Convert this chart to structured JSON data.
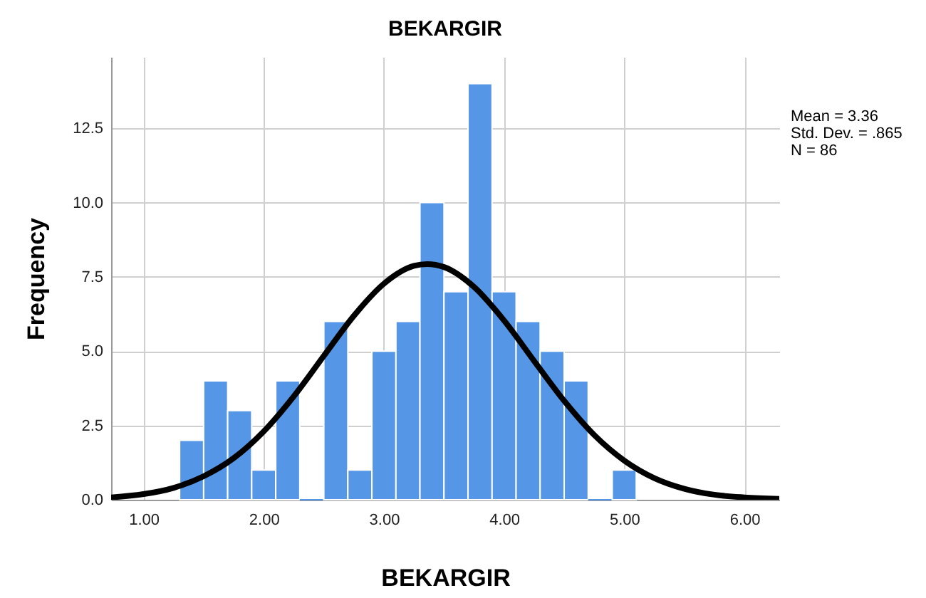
{
  "chart_data": {
    "type": "histogram",
    "title": "BEKARGIR",
    "xlabel": "BEKARGIR",
    "ylabel": "Frequency",
    "bins": [
      1.3,
      1.5,
      1.7,
      1.9,
      2.1,
      2.3,
      2.5,
      2.7,
      2.9,
      3.1,
      3.3,
      3.5,
      3.7,
      3.9,
      4.1,
      4.3,
      4.5,
      4.7,
      4.9,
      5.1
    ],
    "series": [
      {
        "color": "#5596e6",
        "values": [
          2,
          4,
          3,
          1,
          4,
          0,
          6,
          1,
          5,
          6,
          10,
          7,
          14,
          7,
          6,
          5,
          4,
          0,
          1
        ]
      },
      {
        "type": "line",
        "color": "#000000",
        "x": [
          0.73,
          1.0,
          1.25,
          1.5,
          1.75,
          2.0,
          2.25,
          2.5,
          2.75,
          3.0,
          3.25,
          3.36,
          3.5,
          3.75,
          4.0,
          4.25,
          4.5,
          4.75,
          5.0,
          5.25,
          5.5,
          5.75,
          6.0,
          6.29
        ],
        "values": [
          0.08,
          0.19,
          0.4,
          0.79,
          1.4,
          2.3,
          3.48,
          4.84,
          6.19,
          7.27,
          7.87,
          7.93,
          7.83,
          7.16,
          6.03,
          4.67,
          3.33,
          2.18,
          1.32,
          0.73,
          0.37,
          0.17,
          0.08,
          0.03
        ]
      }
    ],
    "xlim": [
      0.73,
      6.29
    ],
    "ylim": [
      0,
      14.9
    ],
    "xticks": [
      {
        "value": 1,
        "label": "1.00"
      },
      {
        "value": 2,
        "label": "2.00"
      },
      {
        "value": 3,
        "label": "3.00"
      },
      {
        "value": 4,
        "label": "4.00"
      },
      {
        "value": 5,
        "label": "5.00"
      },
      {
        "value": 6,
        "label": "6.00"
      }
    ],
    "yticks": [
      {
        "value": 0,
        "label": "0.0"
      },
      {
        "value": 2.5,
        "label": "2.5"
      },
      {
        "value": 5,
        "label": "5.0"
      },
      {
        "value": 7.5,
        "label": "7.5"
      },
      {
        "value": 10,
        "label": "10.0"
      },
      {
        "value": 12.5,
        "label": "12.5"
      }
    ],
    "grid": true,
    "annotations": [
      "Mean = 3.36",
      "Std. Dev. = .865",
      "N = 86"
    ]
  }
}
